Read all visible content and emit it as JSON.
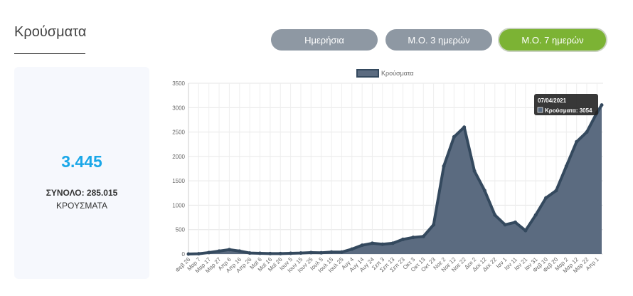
{
  "header": {
    "title": "Κρούσματα"
  },
  "buttons": [
    {
      "label": "Ημερήσια",
      "active": false
    },
    {
      "label": "Μ.Ο. 3 ημερών",
      "active": false
    },
    {
      "label": "Μ.Ο. 7 ημερών",
      "active": true
    }
  ],
  "summary": {
    "value": "3.445",
    "total": "ΣΥΝΟΛΟ: 285.015",
    "label": "ΚΡΟΥΣΜΑΤΑ"
  },
  "colors": {
    "accent": "#7cb334",
    "button": "#8e98a3",
    "series": "#34495e",
    "value": "#1aa7e8"
  },
  "tooltip": {
    "title": "07/04/2021",
    "text": "Κρούσματα: 3054"
  },
  "chart_data": {
    "type": "area",
    "legend": "Κρούσματα",
    "legend_position": "top",
    "ylim": [
      0,
      3500
    ],
    "yticks": [
      0,
      500,
      1000,
      1500,
      2000,
      2500,
      3000,
      3500
    ],
    "categories": [
      "Φεβ 26",
      "Μαρ 7",
      "Μαρ 17",
      "Μαρ 27",
      "Απρ 6",
      "Απρ 16",
      "Απρ 26",
      "Μαϊ 6",
      "Μαϊ 16",
      "Μαϊ 26",
      "Ιουν 5",
      "Ιουν 15",
      "Ιουν 25",
      "Ιουλ 5",
      "Ιουλ 15",
      "Ιουλ 25",
      "Αυγ 4",
      "Αυγ 14",
      "Αυγ 24",
      "Σεπ 3",
      "Σεπ 13",
      "Σεπ 23",
      "Οκτ 3",
      "Οκτ 13",
      "Οκτ 23",
      "Νοε 2",
      "Νοε 12",
      "Νοε 22",
      "Δεκ 2",
      "Δεκ 12",
      "Δεκ 22",
      "Ιαν 1",
      "Ιαν 11",
      "Ιαν 21",
      "Ιαν 31",
      "Φεβ 10",
      "Φεβ 20",
      "Μαρ 2",
      "Μαρ 12",
      "Μαρ 22",
      "Απρ 1"
    ],
    "values": [
      0,
      5,
      30,
      60,
      90,
      60,
      20,
      15,
      10,
      10,
      15,
      20,
      30,
      25,
      40,
      40,
      100,
      180,
      220,
      200,
      220,
      300,
      340,
      360,
      600,
      1800,
      2400,
      2600,
      1700,
      1300,
      800,
      600,
      650,
      480,
      800,
      1150,
      1300,
      1800,
      2300,
      2500,
      2900
    ],
    "last_point": {
      "date": "07/04/2021",
      "value": 3054
    }
  }
}
